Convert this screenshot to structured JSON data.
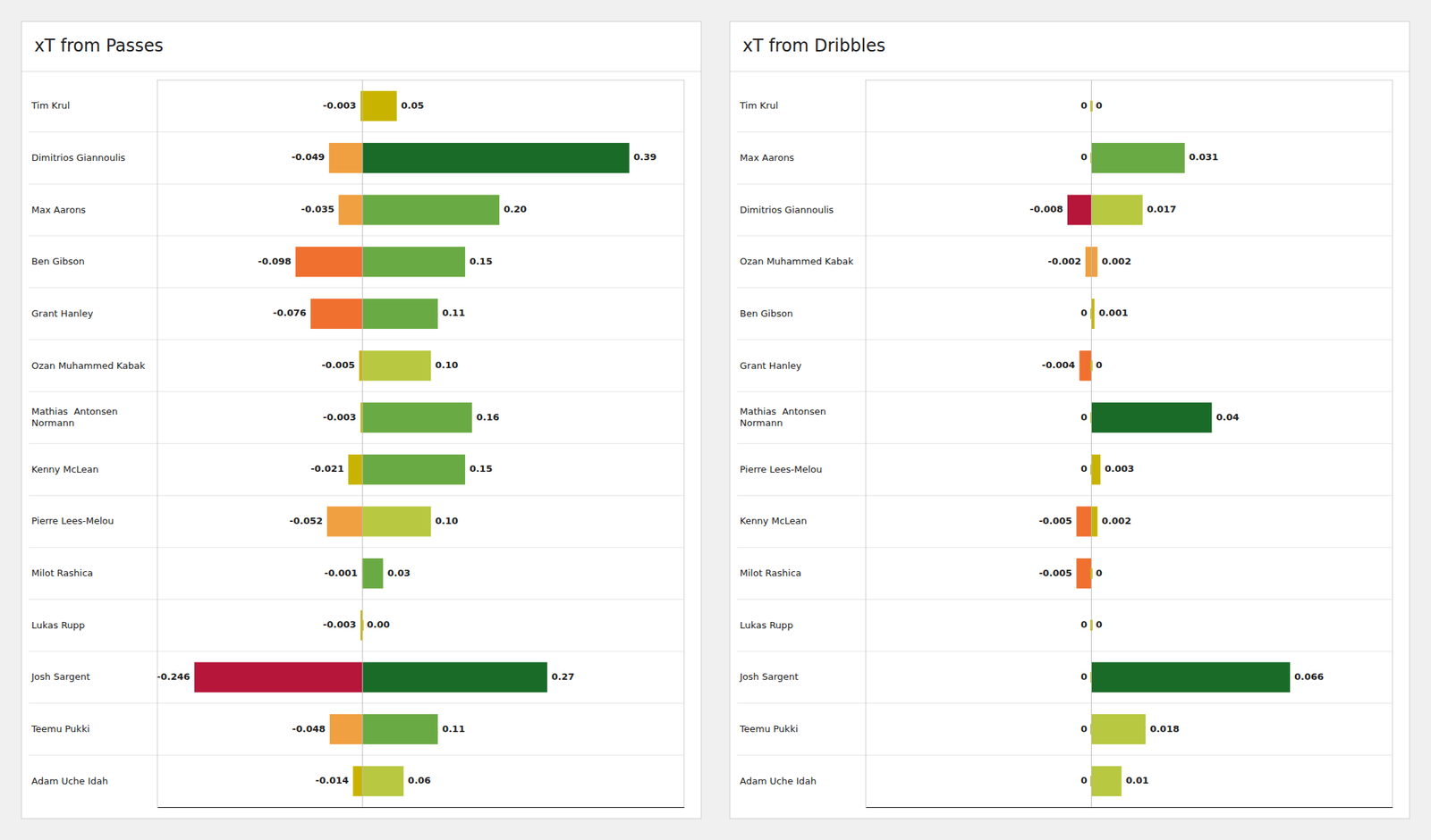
{
  "chart_data": [
    {
      "type": "bar",
      "orientation": "horizontal",
      "title": "xT from Passes",
      "categories": [
        "Tim Krul",
        "Dimitrios Giannoulis",
        "Max Aarons",
        "Ben Gibson",
        "Grant Hanley",
        "Ozan Muhammed Kabak",
        "Mathias  Antonsen\nNormann",
        "Kenny McLean",
        "Pierre Lees-Melou",
        "Milot Rashica",
        "Lukas Rupp",
        "Josh Sargent",
        "Teemu Pukki",
        "Adam Uche Idah"
      ],
      "series": [
        {
          "values": [
            -0.003,
            -0.049,
            -0.035,
            -0.098,
            -0.076,
            -0.005,
            -0.003,
            -0.021,
            -0.052,
            -0.001,
            -0.003,
            -0.246,
            -0.048,
            -0.014
          ],
          "value_labels": [
            "-0.003",
            "-0.049",
            "-0.035",
            "-0.098",
            "-0.076",
            "-0.005",
            "-0.003",
            "-0.021",
            "-0.052",
            "-0.001",
            "-0.003",
            "-0.246",
            "-0.048",
            "-0.014"
          ],
          "colors": [
            "#c8b400",
            "#f0a040",
            "#f0a040",
            "#f07030",
            "#f07030",
            "#c8b400",
            "#c8b400",
            "#c8b400",
            "#f0a040",
            "#c8b400",
            "#c8b400",
            "#b5163a",
            "#f0a040",
            "#c8b400"
          ]
        },
        {
          "values": [
            0.05,
            0.39,
            0.2,
            0.15,
            0.11,
            0.1,
            0.16,
            0.15,
            0.1,
            0.03,
            0.0,
            0.27,
            0.11,
            0.06
          ],
          "value_labels": [
            "0.05",
            "0.39",
            "0.20",
            "0.15",
            "0.11",
            "0.10",
            "0.16",
            "0.15",
            "0.10",
            "0.03",
            "0.00",
            "0.27",
            "0.11",
            "0.06"
          ],
          "colors": [
            "#c8b400",
            "#1a6b28",
            "#6aaa44",
            "#6aaa44",
            "#6aaa44",
            "#b8c840",
            "#6aaa44",
            "#6aaa44",
            "#b8c840",
            "#6aaa44",
            "#c8b400",
            "#1a6b28",
            "#6aaa44",
            "#b8c840"
          ]
        }
      ],
      "xlim": [
        -0.3,
        0.47
      ],
      "tick_labels": false,
      "data_labels": true,
      "grid": false
    },
    {
      "type": "bar",
      "orientation": "horizontal",
      "title": "xT from Dribbles",
      "categories": [
        "Tim Krul",
        "Max Aarons",
        "Dimitrios Giannoulis",
        "Ozan Muhammed Kabak",
        "Ben Gibson",
        "Grant Hanley",
        "Mathias  Antonsen\nNormann",
        "Pierre Lees-Melou",
        "Kenny McLean",
        "Milot Rashica",
        "Lukas Rupp",
        "Josh Sargent",
        "Teemu Pukki",
        "Adam Uche Idah"
      ],
      "series": [
        {
          "values": [
            0.0,
            0.0,
            -0.008,
            -0.002,
            0.0,
            -0.004,
            0.0,
            0.0,
            -0.005,
            -0.005,
            0.0,
            0.0,
            0.0,
            0.0
          ],
          "value_labels": [
            "0",
            "0",
            "-0.008",
            "-0.002",
            "0",
            "-0.004",
            "0",
            "0",
            "-0.005",
            "-0.005",
            "0",
            "0",
            "0",
            "0"
          ],
          "colors": [
            "#c8b400",
            "#c8b400",
            "#b5163a",
            "#f0a040",
            "#c8b400",
            "#f07030",
            "#c8b400",
            "#c8b400",
            "#f07030",
            "#f07030",
            "#c8b400",
            "#c8b400",
            "#c8b400",
            "#c8b400"
          ]
        },
        {
          "values": [
            0.0,
            0.031,
            0.017,
            0.002,
            0.001,
            0.0,
            0.04,
            0.003,
            0.002,
            0.0,
            0.0,
            0.066,
            0.018,
            0.01
          ],
          "value_labels": [
            "0",
            "0.031",
            "0.017",
            "0.002",
            "0.001",
            "0",
            "0.04",
            "0.003",
            "0.002",
            "0",
            "0",
            "0.066",
            "0.018",
            "0.01"
          ],
          "colors": [
            "#c8b400",
            "#6aaa44",
            "#b8c840",
            "#f0a040",
            "#c8b400",
            "#c8b400",
            "#1a6b28",
            "#c8b400",
            "#c8b400",
            "#c8b400",
            "#c8b400",
            "#1a6b28",
            "#b8c840",
            "#b8c840"
          ]
        }
      ],
      "xlim": [
        -0.075,
        0.1
      ],
      "tick_labels": false,
      "data_labels": true,
      "grid": false
    }
  ]
}
